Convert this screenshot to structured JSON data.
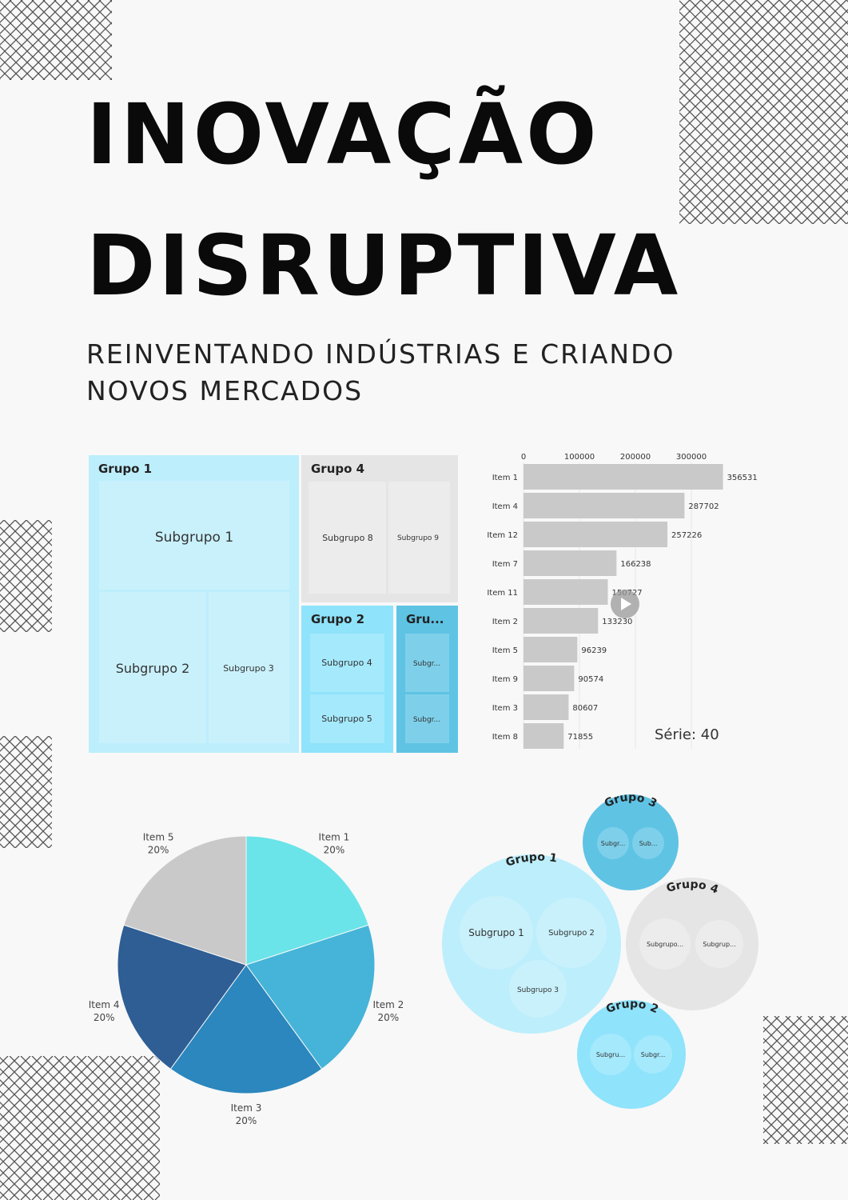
{
  "title": {
    "line1": "INOVAÇÃO",
    "line2": "DISRUPTIVA"
  },
  "subtitle": {
    "line1": "REINVENTANDO INDÚSTRIAS E CRIANDO",
    "line2": "NOVOS MERCADOS"
  },
  "colors": {
    "background": "#f8f8f8",
    "lightBlue": "#bdeefc",
    "lightBlueInner": "#c9f1fc",
    "grey": "#e5e5e5",
    "greyInner": "#ececec",
    "midBlue": "#8fe3fb",
    "darkBlue": "#5fc3e4",
    "barGrey": "#c9c9c9"
  },
  "treemap": {
    "groups": [
      {
        "name": "Grupo 1",
        "subgroups": [
          "Subgrupo 1",
          "Subgrupo 2",
          "Subgrupo 3"
        ]
      },
      {
        "name": "Grupo 4",
        "subgroups": [
          "Subgrupo 8",
          "Subgrupo 9"
        ]
      },
      {
        "name": "Grupo 2",
        "subgroups": [
          "Subgrupo 4",
          "Subgrupo 5"
        ]
      },
      {
        "name": "Gru...",
        "subgroups": [
          "Subgr...",
          "Subgr..."
        ]
      }
    ]
  },
  "chart_data": [
    {
      "type": "bar",
      "orientation": "horizontal",
      "categories": [
        "Item 1",
        "Item 4",
        "Item 12",
        "Item 7",
        "Item 11",
        "Item 2",
        "Item 5",
        "Item 9",
        "Item 3",
        "Item 8"
      ],
      "values": [
        356531,
        287702,
        257226,
        166238,
        150727,
        133230,
        96239,
        90574,
        80607,
        71855
      ],
      "xticks": [
        "0",
        "100000",
        "200000",
        "300000"
      ],
      "xlim": [
        0,
        360000
      ],
      "annotation": "Série: 40",
      "play_icon": "play-icon"
    },
    {
      "type": "pie",
      "categories": [
        "Item 1",
        "Item 2",
        "Item 3",
        "Item 4",
        "Item 5"
      ],
      "values": [
        20,
        20,
        20,
        20,
        20
      ],
      "labels": [
        "20%",
        "20%",
        "20%",
        "20%",
        "20%"
      ],
      "colors": [
        "#6ae4e9",
        "#45b4d8",
        "#2b87bd",
        "#2e5e94",
        "#c9c9c9"
      ]
    }
  ],
  "bubbles": {
    "groups": [
      {
        "name": "Grupo 1",
        "subgroups": [
          "Subgrupo 1",
          "Subgrupo 2",
          "Subgrupo 3"
        ]
      },
      {
        "name": "Grupo 3",
        "subgroups": [
          "Subgr...",
          "Sub..."
        ]
      },
      {
        "name": "Grupo 4",
        "subgroups": [
          "Subgrupo...",
          "Subgrup..."
        ]
      },
      {
        "name": "Grupo 2",
        "subgroups": [
          "Subgru...",
          "Subgr..."
        ]
      }
    ]
  }
}
